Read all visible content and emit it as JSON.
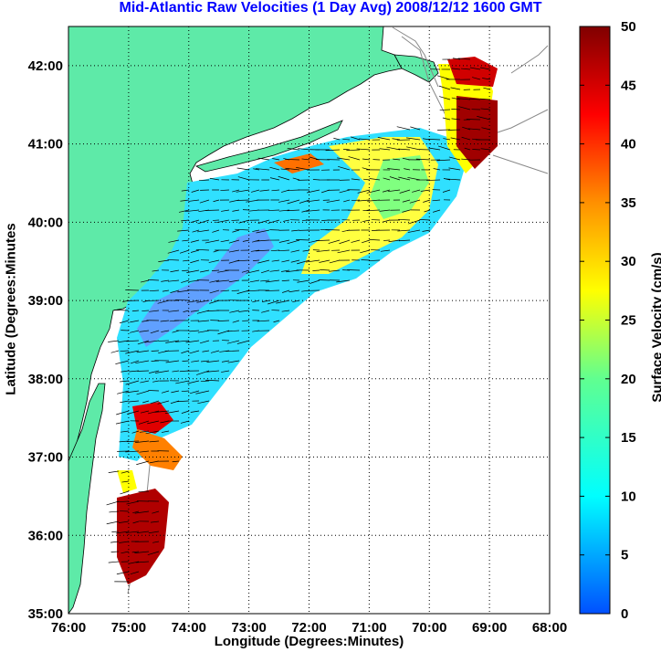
{
  "title": "Mid-Atlantic Raw Velocities (1 Day Avg) 2008/12/12 1600 GMT",
  "xlabel": "Longitude (Degrees:Minutes)",
  "ylabel": "Latitude (Degrees:Minutes",
  "colorbar_label": "Surface Velocity (cm/s)",
  "x_ticks": [
    "76:00",
    "75:00",
    "74:00",
    "73:00",
    "72:00",
    "71:00",
    "70:00",
    "69:00",
    "68:00"
  ],
  "y_ticks": [
    "42:00",
    "41:00",
    "40:00",
    "39:00",
    "38:00",
    "37:00",
    "36:00",
    "35:00"
  ],
  "cb_ticks": [
    "50",
    "45",
    "40",
    "35",
    "30",
    "25",
    "20",
    "15",
    "10",
    "5",
    "0"
  ],
  "colors": {
    "land": "#5eeaa8",
    "title": "#0000ff",
    "grid": "#000000",
    "bathymetry": "#888888"
  },
  "chart_data": {
    "type": "heatmap",
    "title": "Mid-Atlantic Raw Velocities (1 Day Avg) 2008/12/12 1600 GMT",
    "xlabel": "Longitude (Degrees:Minutes)",
    "ylabel": "Latitude (Degrees:Minutes",
    "xlim": [
      -76,
      -68
    ],
    "ylim": [
      35,
      42.5
    ],
    "colorbar": {
      "label": "Surface Velocity (cm/s)",
      "range": [
        0,
        50
      ],
      "colormap": "jet"
    },
    "grid": true
  }
}
